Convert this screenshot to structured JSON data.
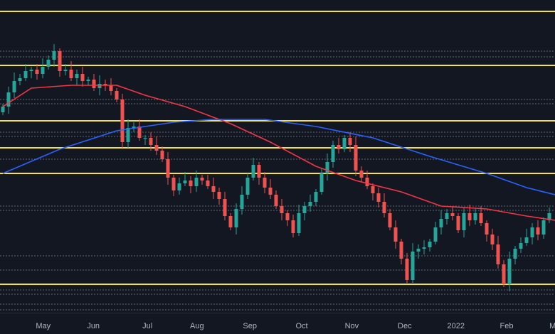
{
  "chart_data": {
    "type": "candlestick",
    "title": "",
    "ylim": [
      0,
      220
    ],
    "grid": false,
    "colors": {
      "background": "#131722",
      "up": "#26a69a",
      "down": "#ef5350",
      "ma_fast": "#f23645",
      "ma_slow": "#2962ff",
      "key_level": "#f5e342",
      "minor_level": "#787b86",
      "tick_text": "#b2b5be"
    },
    "closes": [
      145,
      155,
      163,
      165,
      170,
      171,
      168,
      173,
      178,
      184,
      170,
      171,
      165,
      168,
      163,
      164,
      158,
      161,
      160,
      156,
      150,
      120,
      130,
      131,
      123,
      123,
      118,
      114,
      108,
      95,
      86,
      91,
      93,
      89,
      95,
      93,
      89,
      85,
      80,
      68,
      60,
      73,
      83,
      95,
      104,
      95,
      88,
      83,
      75,
      70,
      65,
      56,
      70,
      75,
      78,
      85,
      98,
      106,
      118,
      115,
      123,
      118,
      100,
      95,
      89,
      84,
      78,
      70,
      60,
      50,
      38,
      23,
      43,
      45,
      46,
      50,
      60,
      66,
      70,
      68,
      58,
      70,
      65,
      70,
      63,
      55,
      48,
      34,
      20,
      38,
      45,
      49,
      53,
      60,
      55,
      65,
      70
    ],
    "ma_red": [
      [
        0,
        145
      ],
      [
        5,
        158
      ],
      [
        12,
        160
      ],
      [
        20,
        160
      ],
      [
        25,
        153
      ],
      [
        32,
        145
      ],
      [
        40,
        133
      ],
      [
        47,
        120
      ],
      [
        55,
        103
      ],
      [
        62,
        93
      ],
      [
        70,
        85
      ],
      [
        77,
        75
      ],
      [
        85,
        73
      ],
      [
        92,
        68
      ],
      [
        97,
        65
      ]
    ],
    "ma_blue": [
      [
        0,
        98
      ],
      [
        10,
        115
      ],
      [
        20,
        128
      ],
      [
        30,
        134
      ],
      [
        37,
        136
      ],
      [
        46,
        136
      ],
      [
        55,
        131
      ],
      [
        65,
        123
      ],
      [
        75,
        110
      ],
      [
        85,
        98
      ],
      [
        92,
        88
      ],
      [
        97,
        83
      ]
    ],
    "key_levels": [
      212,
      174,
      135,
      116,
      98,
      20
    ],
    "minor_levels": [
      184,
      180,
      150,
      147,
      127,
      124,
      108,
      75,
      72,
      40,
      30,
      16,
      13,
      6,
      2
    ],
    "x_ticks": [
      {
        "label": "May",
        "index": 7.1
      },
      {
        "label": "Jun",
        "index": 15.9
      },
      {
        "label": "Jul",
        "index": 25.4
      },
      {
        "label": "Aug",
        "index": 34.1
      },
      {
        "label": "Sep",
        "index": 43.4
      },
      {
        "label": "Oct",
        "index": 52.5
      },
      {
        "label": "Nov",
        "index": 61.3
      },
      {
        "label": "Dec",
        "index": 70.6
      },
      {
        "label": "2022",
        "index": 79.6
      },
      {
        "label": "Feb",
        "index": 88.5
      },
      {
        "label": "Mar",
        "index": 97.2
      }
    ]
  }
}
